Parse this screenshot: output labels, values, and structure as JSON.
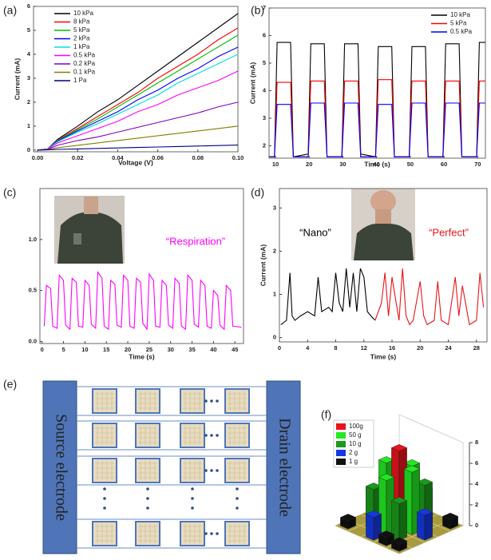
{
  "chart_data": [
    {
      "type": "line",
      "panel": "(a)",
      "xlabel": "Voltage (V)",
      "ylabel": "Current (mA)",
      "xlim": [
        -0.002,
        0.1
      ],
      "ylim": [
        -0.07,
        6
      ],
      "xticks": [
        {
          "value": 0,
          "label": "0.00"
        },
        0.02,
        0.04,
        0.06,
        0.08,
        {
          "value": 0.1,
          "label": "0.10"
        }
      ],
      "yticks": [
        0,
        1,
        2,
        3,
        4,
        5,
        6
      ],
      "legend": "upper left",
      "x": [
        0,
        0.005,
        0.01,
        0.02,
        0.03,
        0.04,
        0.05,
        0.06,
        0.07,
        0.08,
        0.09,
        0.1
      ],
      "series": [
        {
          "name": "10 kPa",
          "color": "#000000",
          "values": [
            0,
            0.05,
            0.45,
            1.0,
            1.6,
            2.1,
            2.7,
            3.3,
            3.9,
            4.5,
            5.1,
            5.7
          ]
        },
        {
          "name": "8 kPa",
          "color": "#ff0000",
          "values": [
            0,
            0.05,
            0.42,
            0.9,
            1.4,
            1.9,
            2.4,
            3.0,
            3.5,
            4.0,
            4.6,
            5.1
          ]
        },
        {
          "name": "5 kPa",
          "color": "#00c000",
          "values": [
            0,
            0.05,
            0.4,
            0.85,
            1.3,
            1.8,
            2.3,
            2.8,
            3.3,
            3.8,
            4.3,
            4.8
          ]
        },
        {
          "name": "2 kPa",
          "color": "#0000ff",
          "values": [
            0,
            0.05,
            0.38,
            0.8,
            1.2,
            1.6,
            2.1,
            2.5,
            3.0,
            3.4,
            3.9,
            4.3
          ]
        },
        {
          "name": "1 kPa",
          "color": "#00e0e0",
          "values": [
            0,
            0.05,
            0.35,
            0.75,
            1.1,
            1.5,
            1.9,
            2.3,
            2.8,
            3.2,
            3.6,
            4.0
          ]
        },
        {
          "name": "0.5 kPa",
          "color": "#ff00ff",
          "values": [
            0,
            0.04,
            0.3,
            0.6,
            0.9,
            1.2,
            1.6,
            1.9,
            2.3,
            2.6,
            2.9,
            3.3
          ]
        },
        {
          "name": "0.2 kPa",
          "color": "#8000c0",
          "values": [
            0,
            0.03,
            0.2,
            0.4,
            0.55,
            0.75,
            0.95,
            1.15,
            1.35,
            1.55,
            1.8,
            2.0
          ]
        },
        {
          "name": "0.1 kPa",
          "color": "#808000",
          "values": [
            0,
            0.02,
            0.1,
            0.2,
            0.3,
            0.4,
            0.5,
            0.6,
            0.7,
            0.8,
            0.9,
            1.0
          ]
        },
        {
          "name": "1 Pa",
          "color": "#000080",
          "values": [
            0,
            0.01,
            0.03,
            0.05,
            0.07,
            0.09,
            0.11,
            0.13,
            0.15,
            0.17,
            0.19,
            0.21
          ]
        }
      ]
    },
    {
      "type": "line",
      "panel": "(b)",
      "xlabel": "Time (s)",
      "ylabel": "Current (mA)",
      "xlim": [
        8.1,
        72.3
      ],
      "ylim": [
        1.55,
        7
      ],
      "xticks": [
        10,
        20,
        30,
        40,
        50,
        60,
        70
      ],
      "yticks": [
        2,
        3,
        4,
        5,
        6,
        7
      ],
      "legend": "upper right",
      "x": [
        8.2,
        9.7,
        10.5,
        14.5,
        15.3,
        19.7,
        20.5,
        24.5,
        25.3,
        29.7,
        30.5,
        34.5,
        35.3,
        39.7,
        40.5,
        44.5,
        45.3,
        49.7,
        50.5,
        54.5,
        55.3,
        59.7,
        60.5,
        64.5,
        65.3,
        69.7,
        70.5,
        72.2
      ],
      "series": [
        {
          "name": "10 kPa",
          "color": "#000000",
          "values": [
            1.6,
            1.6,
            5.75,
            5.75,
            1.6,
            1.7,
            5.7,
            5.7,
            1.6,
            1.6,
            5.7,
            5.7,
            1.7,
            1.6,
            5.6,
            5.6,
            1.6,
            1.6,
            5.6,
            5.6,
            1.6,
            1.6,
            5.7,
            5.7,
            1.6,
            1.6,
            5.75,
            5.75
          ]
        },
        {
          "name": "5 kPa",
          "color": "#ff0000",
          "values": [
            1.6,
            1.6,
            4.3,
            4.3,
            1.6,
            1.6,
            4.35,
            4.35,
            1.6,
            1.6,
            4.35,
            4.35,
            1.6,
            1.6,
            4.4,
            4.4,
            1.6,
            1.6,
            4.35,
            4.35,
            1.6,
            1.6,
            4.35,
            4.35,
            1.6,
            1.6,
            4.35,
            4.35
          ]
        },
        {
          "name": "0.5 kPa",
          "color": "#0000ff",
          "values": [
            1.6,
            1.6,
            3.5,
            3.5,
            1.6,
            1.6,
            3.55,
            3.55,
            1.6,
            1.6,
            3.55,
            3.55,
            1.6,
            1.6,
            3.5,
            3.5,
            1.6,
            1.6,
            3.55,
            3.55,
            1.6,
            1.6,
            3.55,
            3.55,
            1.6,
            1.6,
            3.55,
            3.55
          ]
        }
      ]
    },
    {
      "type": "line",
      "panel": "(c)",
      "xlabel": "Time (s)",
      "xlim": [
        -0.5,
        47
      ],
      "ylim": [
        -0.02,
        1.5
      ],
      "xticks": [
        0,
        5,
        10,
        15,
        20,
        25,
        30,
        35,
        40,
        45
      ],
      "yticks": [
        {
          "value": 0,
          "label": "0.0"
        },
        0.5,
        {
          "value": 1,
          "label": "1.0"
        }
      ],
      "annotations": [
        {
          "text": "“Respiration”",
          "color": "#ff00ff"
        }
      ],
      "x": [
        0.5,
        1,
        2,
        2.5,
        3.5,
        4,
        5,
        5.5,
        6.5,
        7,
        8,
        8.5,
        9.5,
        10,
        11,
        11.5,
        12.5,
        13,
        14,
        14.5,
        15.5,
        16,
        17,
        17.5,
        18.5,
        19,
        20,
        20.5,
        21.5,
        22,
        23,
        23.5,
        24.5,
        25,
        26,
        26.5,
        27.5,
        28,
        29,
        29.5,
        30.5,
        31,
        32,
        32.5,
        33.5,
        34,
        35,
        35.5,
        36.5,
        37,
        38,
        38.5,
        39.5,
        40,
        41,
        41.5,
        42.5,
        43,
        44,
        44.5,
        46.5
      ],
      "series": [
        {
          "color": "#ff00ff",
          "values": [
            0.15,
            0.55,
            0.52,
            0.15,
            0.13,
            0.65,
            0.6,
            0.16,
            0.12,
            0.62,
            0.58,
            0.15,
            0.14,
            0.6,
            0.55,
            0.17,
            0.13,
            0.68,
            0.62,
            0.15,
            0.12,
            0.6,
            0.56,
            0.16,
            0.14,
            0.65,
            0.6,
            0.15,
            0.13,
            0.62,
            0.58,
            0.18,
            0.12,
            0.66,
            0.6,
            0.15,
            0.14,
            0.6,
            0.55,
            0.16,
            0.13,
            0.62,
            0.57,
            0.15,
            0.12,
            0.65,
            0.6,
            0.17,
            0.14,
            0.6,
            0.55,
            0.15,
            0.13,
            0.5,
            0.45,
            0.16,
            0.12,
            0.55,
            0.5,
            0.15,
            0.14
          ]
        }
      ]
    },
    {
      "type": "line",
      "panel": "(d)",
      "xlabel": "Time (s)",
      "ylabel": "Current (mA)",
      "xlim": [
        0,
        29.5
      ],
      "ylim": [
        -0.1,
        3.45
      ],
      "xticks": [
        0,
        4,
        8,
        12,
        16,
        20,
        24,
        28
      ],
      "yticks": [
        0,
        1,
        2,
        3
      ],
      "annotations": [
        {
          "text": "“Nano”",
          "color": "#000000"
        },
        {
          "text": "“Perfect”",
          "color": "#e8141b"
        }
      ],
      "series": [
        {
          "color": "#000000",
          "x": [
            0.2,
            1,
            1.5,
            1.8,
            2.2,
            3,
            4,
            5,
            5.5,
            6,
            7,
            7.5,
            8,
            8.5,
            9,
            9.5,
            10,
            10.5,
            11,
            11.5,
            12,
            12.5,
            13,
            13.6
          ],
          "values": [
            0.3,
            0.4,
            1.5,
            0.5,
            0.4,
            0.5,
            0.6,
            0.5,
            1.4,
            0.6,
            0.7,
            0.6,
            1.5,
            0.8,
            0.6,
            1.6,
            0.7,
            1.5,
            0.6,
            1.6,
            1.4,
            0.6,
            0.5,
            0.4
          ]
        },
        {
          "color": "#e8141b",
          "x": [
            13.6,
            14.5,
            15,
            15.5,
            16,
            17,
            17.5,
            18,
            18.5,
            19,
            20,
            20.5,
            21,
            22,
            22.5,
            23,
            24,
            25,
            25.5,
            26,
            27,
            28,
            28.5,
            29
          ],
          "values": [
            0.4,
            0.8,
            1.5,
            0.5,
            1.4,
            0.4,
            1.6,
            0.5,
            0.3,
            0.4,
            1.3,
            0.5,
            0.3,
            0.4,
            1.3,
            0.4,
            0.3,
            1.4,
            0.5,
            1.2,
            0.3,
            0.4,
            1.5,
            0.7
          ]
        }
      ]
    },
    {
      "type": "bar3d",
      "panel": "(f)",
      "zlim": [
        0,
        8
      ],
      "zticks": [
        0,
        2,
        4,
        6,
        8
      ],
      "legend": "upper left",
      "series": [
        {
          "name": "100g",
          "color": "#e8141b",
          "cells": [
            [
              2,
              2
            ]
          ],
          "values": [
            7.5
          ]
        },
        {
          "name": "50 g",
          "color": "#22e822",
          "cells": [
            [
              1,
              2
            ],
            [
              2,
              1
            ],
            [
              2,
              3
            ],
            [
              3,
              2
            ]
          ],
          "values": [
            5.5,
            5.8,
            6,
            5.2
          ]
        },
        {
          "name": "10 g",
          "color": "#1a9a1a",
          "cells": [
            [
              1,
              1
            ],
            [
              1,
              3
            ],
            [
              3,
              1
            ],
            [
              3,
              3
            ]
          ],
          "values": [
            4,
            4.2,
            3.8,
            3.5
          ]
        },
        {
          "name": "2 g",
          "color": "#1538e0",
          "cells": [
            [
              0,
              2
            ],
            [
              2,
              0
            ],
            [
              2,
              4
            ],
            [
              4,
              2
            ]
          ],
          "values": [
            2.5,
            2.6,
            2.4,
            2.2
          ]
        },
        {
          "name": "1 g",
          "color": "#111111",
          "cells": [
            [
              0,
              0
            ],
            [
              0,
              4
            ],
            [
              4,
              0
            ],
            [
              4,
              4
            ],
            [
              0,
              1
            ],
            [
              4,
              3
            ]
          ],
          "values": [
            0.8,
            0.9,
            0.8,
            0.7,
            0.6,
            0.8
          ]
        }
      ]
    }
  ],
  "diagram": {
    "panel": "(e)",
    "source": "Source electrode",
    "drain": "Drain electrode"
  }
}
